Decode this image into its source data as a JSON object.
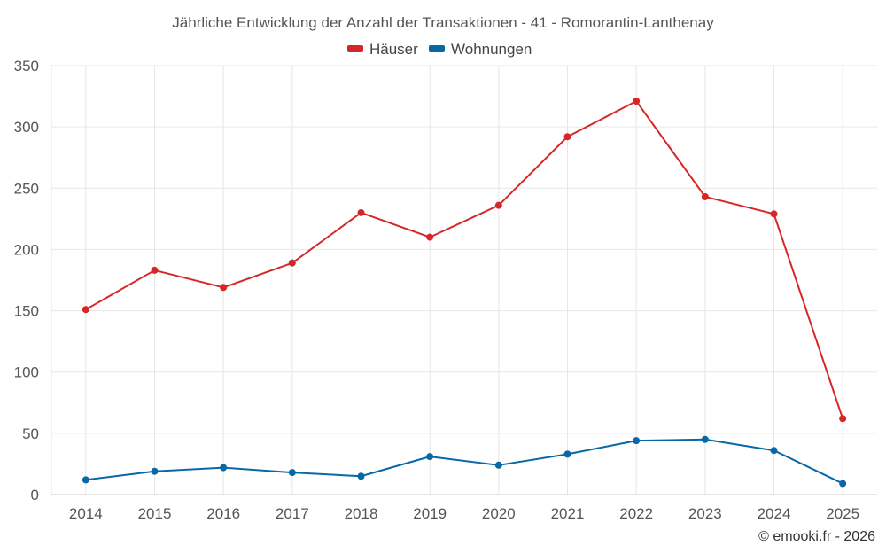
{
  "chart_data": {
    "type": "line",
    "title": "Jährliche Entwicklung der Anzahl der Transaktionen - 41 - Romorantin-Lanthenay",
    "categories": [
      "2014",
      "2015",
      "2016",
      "2017",
      "2018",
      "2019",
      "2020",
      "2021",
      "2022",
      "2023",
      "2024",
      "2025"
    ],
    "series": [
      {
        "name": "Häuser",
        "color": "#d62728",
        "values": [
          151,
          183,
          169,
          189,
          230,
          210,
          236,
          292,
          321,
          243,
          229,
          62
        ]
      },
      {
        "name": "Wohnungen",
        "color": "#0868a6",
        "values": [
          12,
          19,
          22,
          18,
          15,
          31,
          24,
          33,
          44,
          45,
          36,
          9
        ]
      }
    ],
    "xlabel": "",
    "ylabel": "",
    "ylim": [
      0,
      350
    ],
    "yticks": [
      0,
      50,
      100,
      150,
      200,
      250,
      300,
      350
    ],
    "grid": true,
    "legend_position": "top-center",
    "credit": "© emooki.fr - 2026"
  }
}
